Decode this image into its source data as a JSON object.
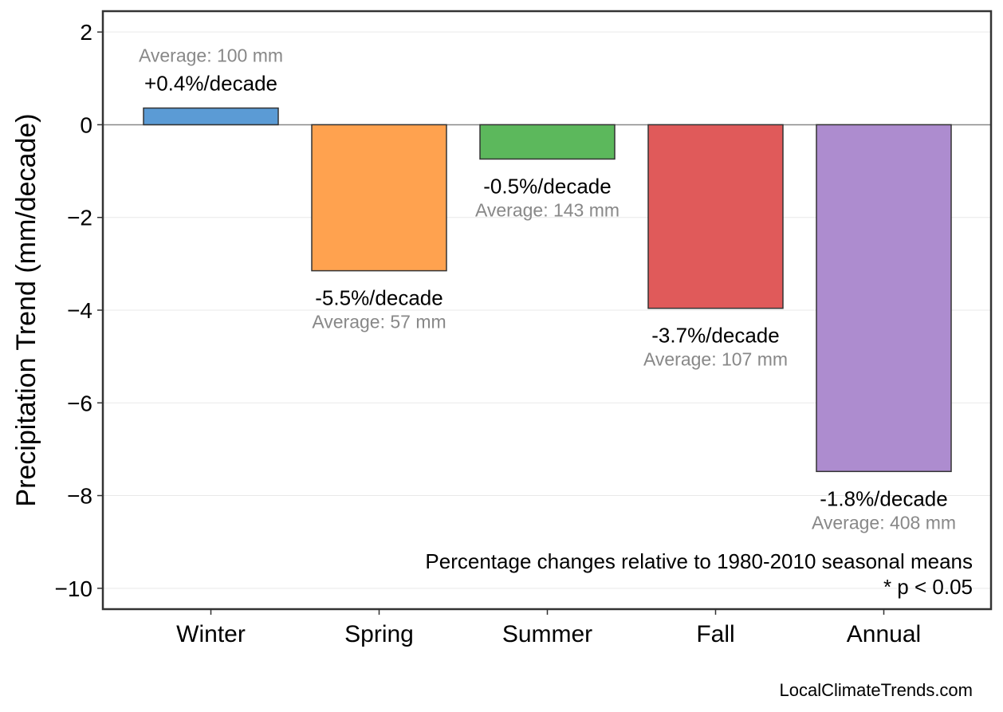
{
  "chart_data": {
    "type": "bar",
    "categories": [
      "Winter",
      "Spring",
      "Summer",
      "Fall",
      "Annual"
    ],
    "values": [
      0.36,
      -3.15,
      -0.74,
      -3.96,
      -7.48
    ],
    "colors": [
      "#5b9bd5",
      "#ffa24f",
      "#5cb85c",
      "#e05a5a",
      "#ad8ccf"
    ],
    "pct_labels": [
      "+0.4%/decade",
      "-5.5%/decade",
      "-0.5%/decade",
      "-3.7%/decade",
      "-1.8%/decade"
    ],
    "avg_labels": [
      "Average: 100 mm",
      "Average: 57 mm",
      "Average: 143 mm",
      "Average: 107 mm",
      "Average: 408 mm"
    ],
    "title": "",
    "xlabel": "",
    "ylabel": "Precipitation Trend (mm/decade)",
    "ylim": [
      -10.45,
      2.45
    ],
    "yticks": [
      2,
      0,
      -2,
      -4,
      -6,
      -8,
      -10
    ],
    "ytick_labels": [
      "2",
      "0",
      "−2",
      "−4",
      "−6",
      "−8",
      "−10"
    ],
    "grid": true,
    "zero_line": true,
    "notes": [
      "Percentage changes relative to 1980-2010 seasonal means",
      "* p < 0.05"
    ]
  },
  "credit": "LocalClimateTrends.com"
}
